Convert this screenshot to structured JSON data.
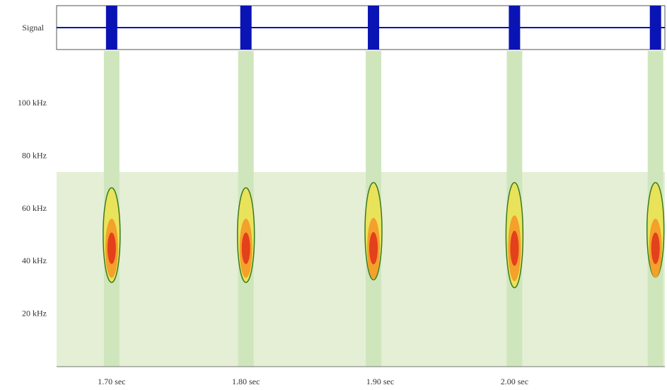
{
  "chart_data": {
    "type": "spectrogram",
    "signal_label": "Signal",
    "x": [
      1.7,
      1.8,
      1.895,
      2.0,
      2.105
    ],
    "values": [
      45,
      45,
      45,
      45,
      45
    ],
    "low": [
      32,
      32,
      33,
      30,
      34
    ],
    "high": [
      68,
      68,
      70,
      70,
      70
    ],
    "noise_top": 74,
    "xlim": [
      1.659,
      2.112
    ],
    "ylim": [
      0,
      120
    ],
    "xticks": [
      {
        "value": 1.7,
        "label": "1.70 sec"
      },
      {
        "value": 1.8,
        "label": "1.80 sec"
      },
      {
        "value": 1.9,
        "label": "1.90 sec"
      },
      {
        "value": 2.0,
        "label": "2.00 sec"
      }
    ],
    "yticks": [
      {
        "value": 20,
        "label": "20 kHz"
      },
      {
        "value": 40,
        "label": "40 kHz"
      },
      {
        "value": 60,
        "label": "60 kHz"
      },
      {
        "value": 80,
        "label": "80 kHz"
      },
      {
        "value": 100,
        "label": "100 kHz"
      }
    ],
    "signal_color": "#0a14b4",
    "noise_color": "#e4efd6",
    "band_color": "#cfe6bd"
  }
}
